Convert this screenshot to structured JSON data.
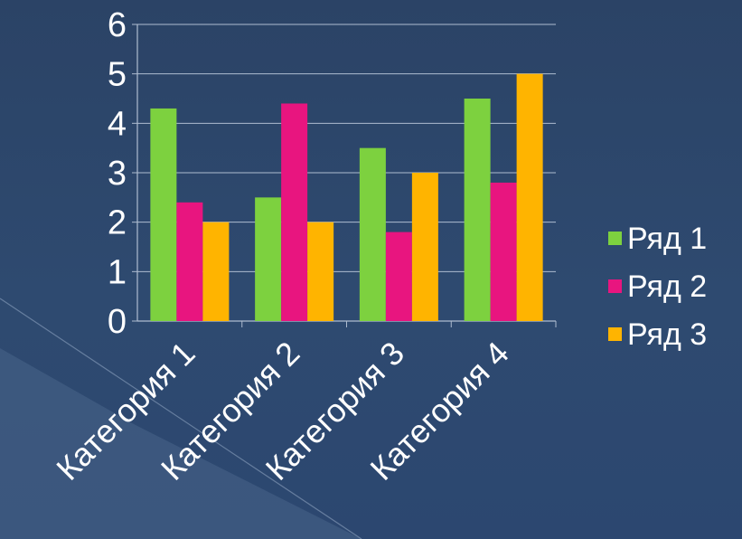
{
  "chart_data": {
    "type": "bar",
    "categories": [
      "Категория 1",
      "Категория 2",
      "Категория 3",
      "Категория 4"
    ],
    "series": [
      {
        "name": "Ряд 1",
        "values": [
          4.3,
          2.5,
          3.5,
          4.5
        ],
        "color": "#7dd13f"
      },
      {
        "name": "Ряд 2",
        "values": [
          2.4,
          4.4,
          1.8,
          2.8
        ],
        "color": "#e8157f"
      },
      {
        "name": "Ряд 3",
        "values": [
          2.0,
          2.0,
          3.0,
          5.0
        ],
        "color": "#ffb400"
      }
    ],
    "title": "",
    "xlabel": "",
    "ylabel": "",
    "ylim": [
      0,
      6
    ],
    "yticks": [
      0,
      1,
      2,
      3,
      4,
      5,
      6
    ],
    "grid": true,
    "legend": "right",
    "colors": {
      "background": "#2d4870",
      "grid": "#aebcd0",
      "axis": "#aebcd0",
      "text": "#ffffff"
    }
  }
}
